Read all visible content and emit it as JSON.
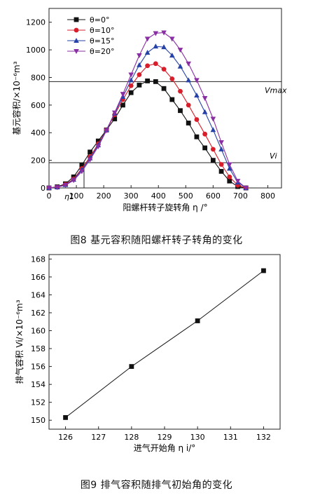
{
  "chart_data": [
    {
      "type": "line",
      "figure_caption": "图8 基元容积随阳螺杆转子转角的变化",
      "xlabel": "阳螺杆转子旋转角 η /°",
      "ylabel": "基元容积/×10⁻⁶m³",
      "xlim": [
        0,
        850
      ],
      "ylim": [
        0,
        1300
      ],
      "xticks": [
        0,
        100,
        200,
        300,
        400,
        500,
        600,
        700,
        800
      ],
      "yticks": [
        0,
        200,
        400,
        600,
        800,
        1000,
        1200
      ],
      "legend_position": "top-left",
      "grid": false,
      "annotations": {
        "vmax_label": "Vmax",
        "vmax_y": 770,
        "vi_label": "Vi",
        "vi_y": 183,
        "eta_label": "η1",
        "eta_x": 128
      },
      "series": [
        {
          "name": "θ=0°",
          "color": "#111111",
          "marker": "square",
          "x": [
            0,
            30,
            60,
            90,
            120,
            150,
            180,
            210,
            240,
            270,
            300,
            330,
            360,
            390,
            420,
            450,
            480,
            510,
            540,
            570,
            600,
            630,
            660,
            690,
            720
          ],
          "y": [
            0,
            8,
            30,
            80,
            165,
            260,
            340,
            420,
            500,
            600,
            690,
            745,
            775,
            770,
            720,
            640,
            560,
            470,
            370,
            290,
            200,
            120,
            50,
            10,
            0
          ]
        },
        {
          "name": "θ=10°",
          "color": "#d81e2b",
          "marker": "circle",
          "x": [
            0,
            30,
            60,
            90,
            120,
            150,
            180,
            210,
            240,
            270,
            300,
            330,
            360,
            390,
            420,
            450,
            480,
            510,
            540,
            570,
            600,
            630,
            660,
            690,
            720
          ],
          "y": [
            0,
            5,
            25,
            65,
            140,
            225,
            320,
            420,
            530,
            640,
            740,
            820,
            885,
            900,
            860,
            790,
            700,
            600,
            495,
            390,
            280,
            170,
            80,
            20,
            0
          ]
        },
        {
          "name": "θ=15°",
          "color": "#2642a8",
          "marker": "triangle",
          "x": [
            0,
            30,
            60,
            90,
            120,
            150,
            180,
            210,
            240,
            270,
            300,
            330,
            360,
            390,
            420,
            450,
            480,
            510,
            540,
            570,
            600,
            630,
            660,
            690,
            720
          ],
          "y": [
            0,
            5,
            22,
            60,
            130,
            215,
            310,
            420,
            540,
            660,
            780,
            890,
            980,
            1025,
            1020,
            960,
            880,
            780,
            670,
            550,
            420,
            280,
            140,
            40,
            0
          ]
        },
        {
          "name": "θ=20°",
          "color": "#8a2fa3",
          "marker": "triangle-down",
          "x": [
            0,
            30,
            60,
            90,
            120,
            150,
            180,
            210,
            240,
            270,
            300,
            330,
            360,
            390,
            420,
            450,
            480,
            510,
            540,
            570,
            600,
            630,
            660,
            690,
            720
          ],
          "y": [
            0,
            5,
            20,
            55,
            120,
            205,
            300,
            415,
            545,
            680,
            820,
            960,
            1080,
            1120,
            1125,
            1080,
            1000,
            900,
            780,
            650,
            500,
            330,
            170,
            50,
            0
          ]
        }
      ]
    },
    {
      "type": "line",
      "figure_caption": "图9 排气容积随排气初始角的变化",
      "xlabel": "进气开始角 η i/°",
      "ylabel": "排气容积 Vi/×10⁻⁶m³",
      "xlim": [
        125.5,
        132.5
      ],
      "ylim": [
        149,
        168.5
      ],
      "xticks": [
        126,
        127,
        128,
        129,
        130,
        131,
        132
      ],
      "yticks": [
        150,
        152,
        154,
        156,
        158,
        160,
        162,
        164,
        166,
        168
      ],
      "grid": false,
      "series": [
        {
          "color": "#111111",
          "marker": "square",
          "x": [
            126,
            128,
            130,
            132
          ],
          "y": [
            150.3,
            156.0,
            161.1,
            166.7
          ]
        }
      ]
    }
  ]
}
